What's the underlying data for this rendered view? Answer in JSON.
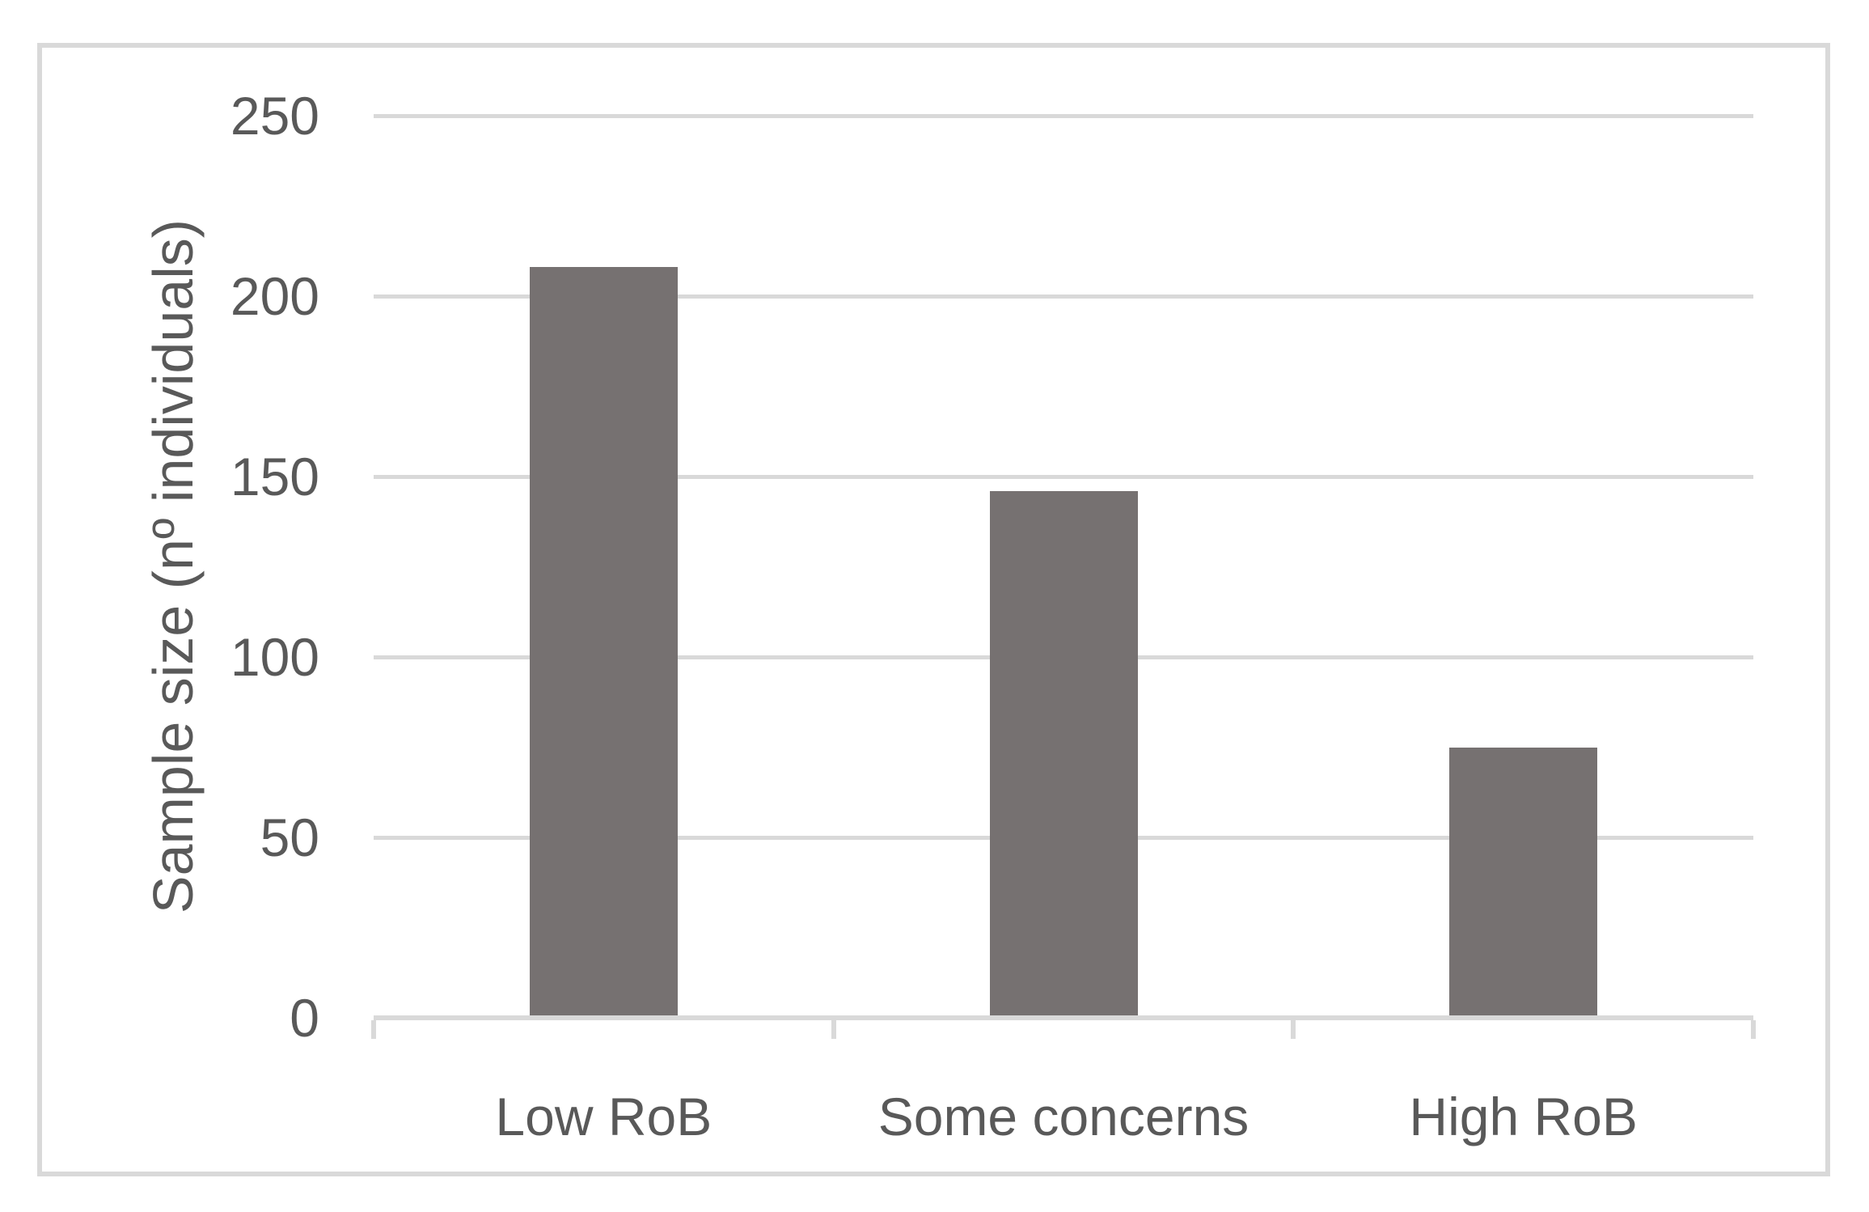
{
  "chart_data": {
    "type": "bar",
    "categories": [
      "Low RoB",
      "Some concerns",
      "High RoB"
    ],
    "values": [
      208,
      146,
      75
    ],
    "title": "",
    "xlabel": "",
    "ylabel": "Sample size (nº individuals)",
    "ylim": [
      0,
      250
    ],
    "yticks": [
      0,
      50,
      100,
      150,
      200,
      250
    ],
    "grid": "horizontal-only",
    "legend": "none",
    "colors": {
      "bar": "#767171",
      "gridline": "#d9d9d9",
      "axis": "#d9d9d9",
      "tick": "#d9d9d9",
      "text": "#595959",
      "chart_border": "#d9d9d9",
      "background": "#ffffff"
    }
  }
}
